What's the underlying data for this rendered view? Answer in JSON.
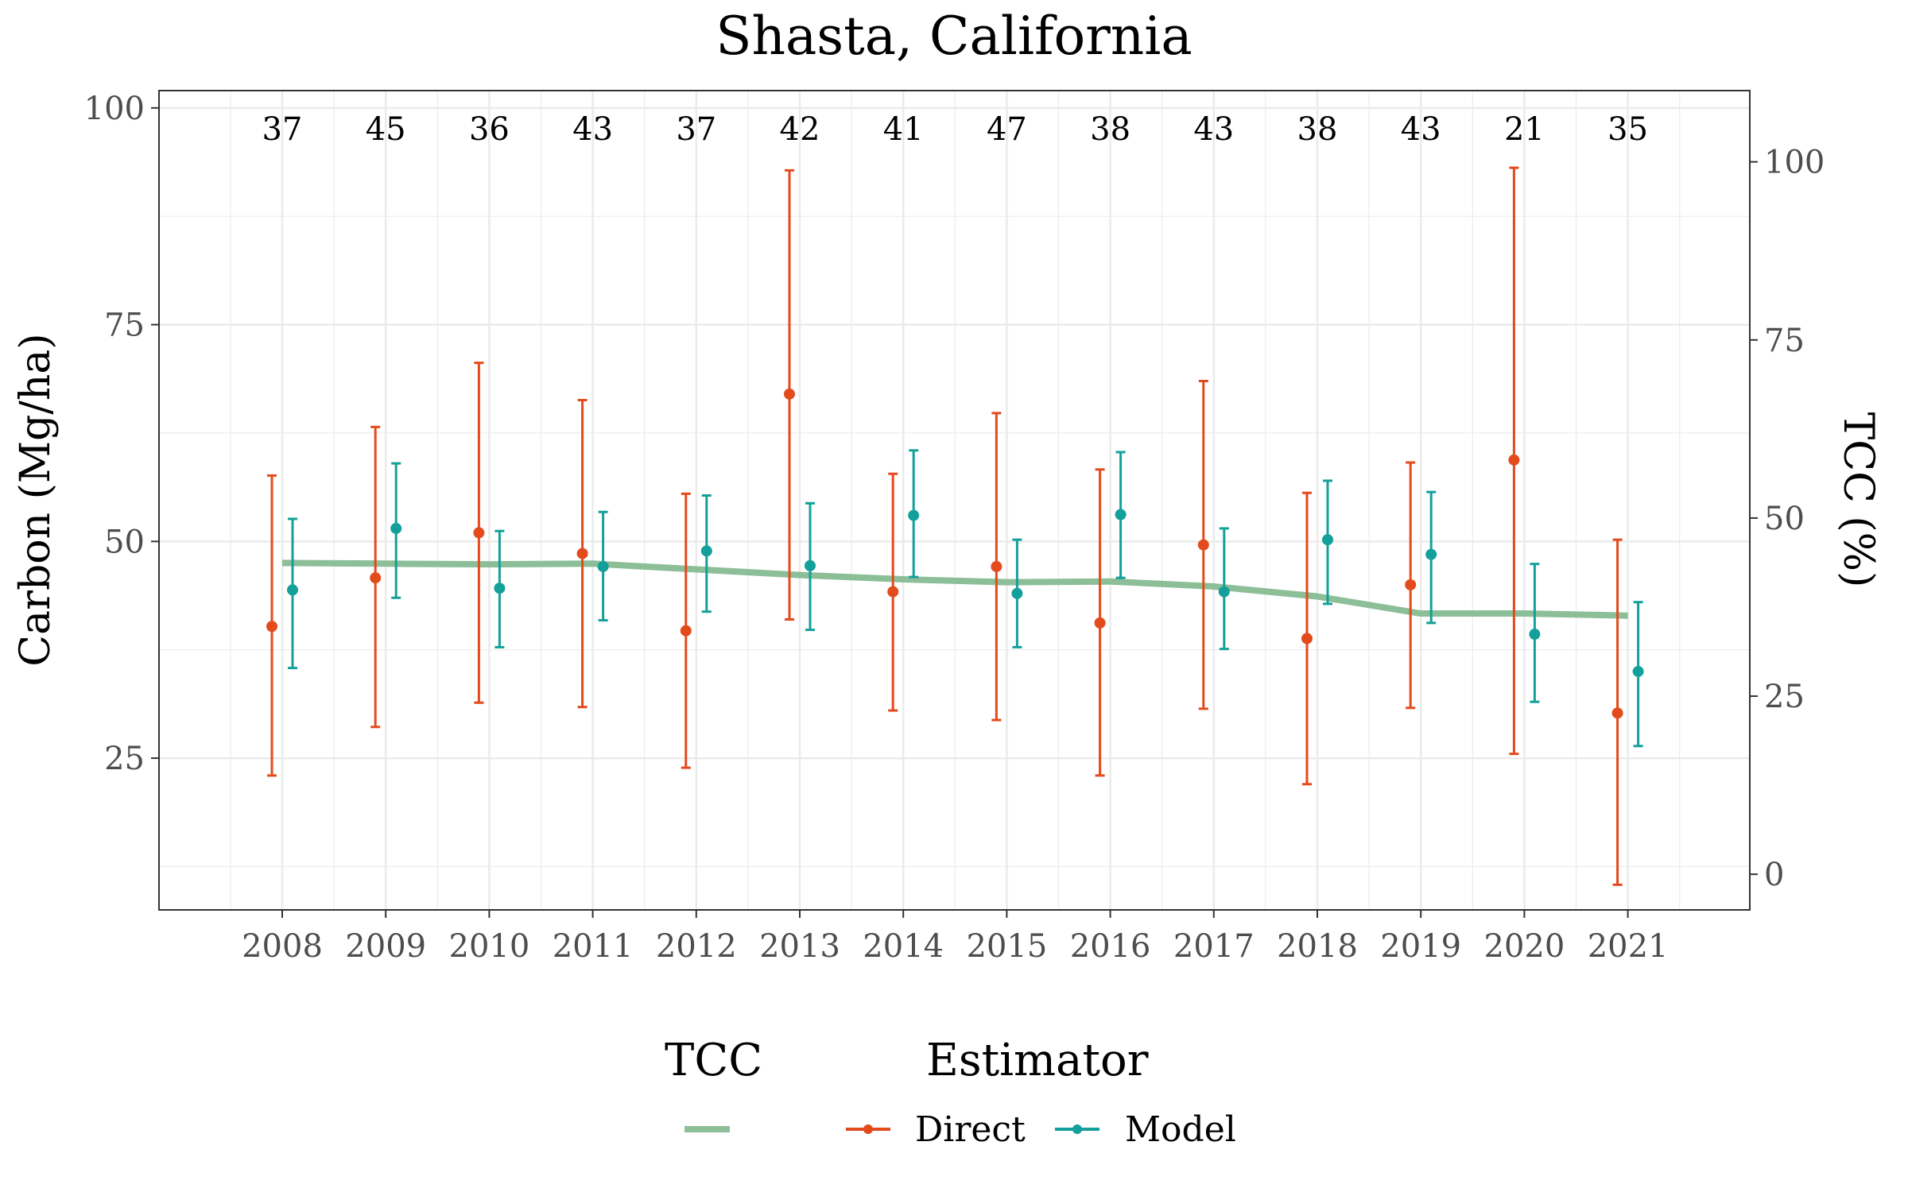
{
  "chart_data": {
    "type": "line",
    "title": "Shasta, California",
    "ylabel": "Carbon (Mg/ha)",
    "y2label": "TCC (%)",
    "xlabel": "",
    "categories": [
      "2008",
      "2009",
      "2010",
      "2011",
      "2012",
      "2013",
      "2014",
      "2015",
      "2016",
      "2017",
      "2018",
      "2019",
      "2020",
      "2021"
    ],
    "counts": [
      "37",
      "45",
      "36",
      "43",
      "37",
      "42",
      "41",
      "47",
      "38",
      "43",
      "38",
      "43",
      "21",
      "35"
    ],
    "ylim": [
      7.5,
      102
    ],
    "y2lim": [
      -5,
      110
    ],
    "yticks": [
      25,
      50,
      75,
      100
    ],
    "y2ticks": [
      0,
      25,
      50,
      75,
      100
    ],
    "grid": true,
    "legend_position": "bottom",
    "series": [
      {
        "name": "Direct",
        "color": "#e34a1c",
        "axis": "left",
        "values": [
          40.2,
          45.8,
          51.0,
          48.6,
          39.7,
          67.0,
          44.2,
          47.1,
          40.6,
          49.6,
          38.8,
          45.0,
          59.4,
          30.2
        ],
        "lower": [
          23.0,
          28.6,
          31.4,
          30.9,
          23.9,
          41.0,
          30.5,
          29.4,
          23.0,
          30.7,
          22.0,
          30.8,
          25.5,
          10.4
        ],
        "upper": [
          57.6,
          63.2,
          70.6,
          66.3,
          55.5,
          92.8,
          57.8,
          64.8,
          58.3,
          68.5,
          55.6,
          59.1,
          93.1,
          50.2
        ]
      },
      {
        "name": "Model",
        "color": "#13a09b",
        "axis": "left",
        "values": [
          44.4,
          51.5,
          44.6,
          47.1,
          48.9,
          47.2,
          53.0,
          44.0,
          53.1,
          44.2,
          50.2,
          48.5,
          39.3,
          35.0
        ],
        "lower": [
          35.4,
          43.5,
          37.8,
          40.9,
          41.9,
          39.8,
          45.9,
          37.8,
          45.8,
          37.6,
          42.8,
          40.6,
          31.5,
          26.4
        ],
        "upper": [
          52.6,
          59.0,
          51.2,
          53.4,
          55.3,
          54.4,
          60.5,
          50.2,
          60.3,
          51.5,
          57.0,
          55.7,
          47.4,
          43.0
        ]
      },
      {
        "name": "TCC",
        "color": "#8cbe98",
        "axis": "right",
        "values": [
          43.7,
          43.6,
          43.5,
          43.6,
          42.8,
          42.0,
          41.4,
          41.0,
          41.1,
          40.4,
          39.0,
          36.6,
          36.6,
          36.3
        ]
      }
    ],
    "legend": {
      "tcc_title": "TCC",
      "estimator_title": "Estimator",
      "direct_label": "Direct",
      "model_label": "Model"
    }
  }
}
